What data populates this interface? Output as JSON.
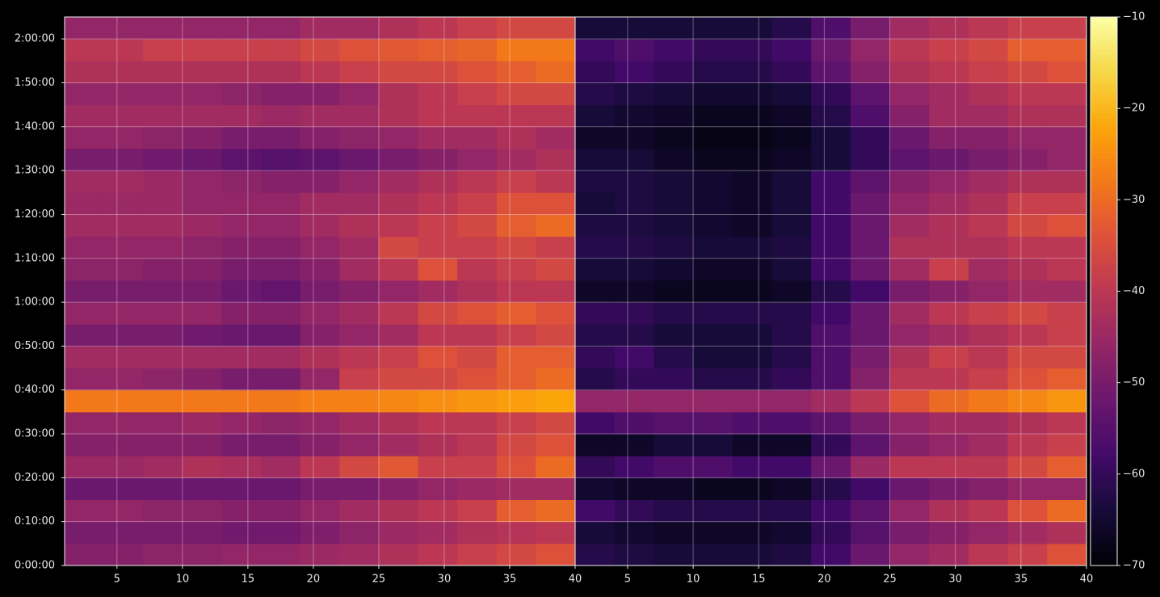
{
  "chart_data": [
    {
      "type": "heatmap",
      "x": [
        2.5,
        5.5,
        8.5,
        11.5,
        14.5,
        17.5,
        20.5,
        23.5,
        26.5,
        29.5,
        32.5,
        35.5,
        38.5
      ],
      "y": [
        150,
        450,
        750,
        1050,
        1350,
        1650,
        1950,
        2250,
        2550,
        2850,
        3150,
        3450,
        3750,
        4050,
        4350,
        4650,
        4950,
        5250,
        5550,
        5850,
        6150,
        6450,
        6750,
        7050,
        7350
      ],
      "z": [
        [
          -48,
          -48,
          -47,
          -47,
          -46,
          -46,
          -45,
          -44,
          -42,
          -40,
          -38,
          -36,
          -34
        ],
        [
          -50,
          -50,
          -50,
          -50,
          -51,
          -51,
          -49,
          -47,
          -45,
          -44,
          -42,
          -41,
          -40
        ],
        [
          -46,
          -46,
          -47,
          -47,
          -48,
          -48,
          -46,
          -44,
          -42,
          -40,
          -38,
          -32,
          -30
        ],
        [
          -52,
          -52,
          -52,
          -52,
          -52,
          -52,
          -50,
          -50,
          -48,
          -46,
          -45,
          -44,
          -44
        ],
        [
          -45,
          -45,
          -44,
          -42,
          -43,
          -44,
          -40,
          -36,
          -33,
          -38,
          -38,
          -34,
          -30
        ],
        [
          -48,
          -48,
          -48,
          -48,
          -50,
          -50,
          -48,
          -46,
          -44,
          -42,
          -40,
          -36,
          -34
        ],
        [
          -46,
          -46,
          -46,
          -45,
          -46,
          -47,
          -46,
          -44,
          -42,
          -40,
          -40,
          -38,
          -36
        ],
        [
          -28,
          -28,
          -28,
          -28,
          -28,
          -28,
          -27,
          -27,
          -26,
          -25,
          -24,
          -23,
          -22
        ],
        [
          -46,
          -46,
          -47,
          -48,
          -50,
          -50,
          -46,
          -38,
          -36,
          -36,
          -34,
          -32,
          -30
        ],
        [
          -44,
          -44,
          -44,
          -44,
          -44,
          -44,
          -42,
          -40,
          -38,
          -34,
          -36,
          -32,
          -32
        ],
        [
          -50,
          -50,
          -50,
          -51,
          -52,
          -52,
          -48,
          -46,
          -44,
          -40,
          -40,
          -38,
          -36
        ],
        [
          -46,
          -46,
          -46,
          -46,
          -48,
          -48,
          -46,
          -44,
          -40,
          -36,
          -34,
          -32,
          -34
        ],
        [
          -50,
          -50,
          -50,
          -50,
          -52,
          -53,
          -50,
          -48,
          -46,
          -44,
          -42,
          -40,
          -40
        ],
        [
          -47,
          -47,
          -48,
          -48,
          -50,
          -50,
          -48,
          -44,
          -40,
          -34,
          -40,
          -38,
          -36
        ],
        [
          -46,
          -46,
          -46,
          -47,
          -48,
          -48,
          -46,
          -44,
          -36,
          -38,
          -38,
          -36,
          -38
        ],
        [
          -44,
          -44,
          -44,
          -45,
          -46,
          -46,
          -44,
          -42,
          -40,
          -38,
          -36,
          -32,
          -30
        ],
        [
          -45,
          -45,
          -45,
          -46,
          -46,
          -46,
          -44,
          -44,
          -42,
          -40,
          -38,
          -34,
          -34
        ],
        [
          -44,
          -44,
          -45,
          -46,
          -47,
          -48,
          -48,
          -46,
          -44,
          -42,
          -40,
          -38,
          -40
        ],
        [
          -50,
          -50,
          -51,
          -52,
          -54,
          -55,
          -54,
          -52,
          -50,
          -48,
          -46,
          -44,
          -42
        ],
        [
          -46,
          -46,
          -47,
          -48,
          -50,
          -50,
          -48,
          -47,
          -46,
          -44,
          -44,
          -42,
          -44
        ],
        [
          -44,
          -44,
          -44,
          -44,
          -44,
          -45,
          -44,
          -44,
          -42,
          -40,
          -40,
          -40,
          -40
        ],
        [
          -46,
          -46,
          -46,
          -46,
          -47,
          -48,
          -48,
          -46,
          -42,
          -40,
          -38,
          -36,
          -36
        ],
        [
          -42,
          -42,
          -42,
          -42,
          -42,
          -42,
          -40,
          -38,
          -36,
          -36,
          -34,
          -32,
          -30
        ],
        [
          -40,
          -40,
          -38,
          -38,
          -38,
          -38,
          -36,
          -34,
          -33,
          -32,
          -31,
          -28,
          -28
        ],
        [
          -46,
          -46,
          -46,
          -46,
          -46,
          -46,
          -44,
          -44,
          -42,
          -40,
          -38,
          -36,
          -36
        ]
      ],
      "xlim": [
        1,
        40
      ],
      "ylim": [
        0,
        7500
      ],
      "xticks": [
        5,
        10,
        15,
        20,
        25,
        30,
        35,
        40
      ],
      "yticks": [
        {
          "value": 0,
          "label": "0:00:00"
        },
        {
          "value": 600,
          "label": "0:10:00"
        },
        {
          "value": 1200,
          "label": "0:20:00"
        },
        {
          "value": 1800,
          "label": "0:30:00"
        },
        {
          "value": 2400,
          "label": "0:40:00"
        },
        {
          "value": 3000,
          "label": "0:50:00"
        },
        {
          "value": 3600,
          "label": "1:00:00"
        },
        {
          "value": 4200,
          "label": "1:10:00"
        },
        {
          "value": 4800,
          "label": "1:20:00"
        },
        {
          "value": 5400,
          "label": "1:30:00"
        },
        {
          "value": 6000,
          "label": "1:40:00"
        },
        {
          "value": 6600,
          "label": "1:50:00"
        },
        {
          "value": 7200,
          "label": "2:00:00"
        }
      ],
      "grid": true,
      "colormap": "inferno"
    },
    {
      "type": "heatmap",
      "x": [
        2.5,
        5.5,
        8.5,
        11.5,
        14.5,
        17.5,
        20.5,
        23.5,
        26.5,
        29.5,
        32.5,
        35.5,
        38.5
      ],
      "y": [
        150,
        450,
        750,
        1050,
        1350,
        1650,
        1950,
        2250,
        2550,
        2850,
        3150,
        3450,
        3750,
        4050,
        4350,
        4650,
        4950,
        5250,
        5550,
        5850,
        6150,
        6450,
        6750,
        7050,
        7350
      ],
      "z": [
        [
          -62,
          -63,
          -64,
          -64,
          -64,
          -63,
          -58,
          -52,
          -46,
          -44,
          -40,
          -38,
          -34
        ],
        [
          -64,
          -65,
          -66,
          -66,
          -66,
          -65,
          -60,
          -55,
          -50,
          -48,
          -46,
          -44,
          -42
        ],
        [
          -58,
          -60,
          -62,
          -62,
          -62,
          -62,
          -58,
          -54,
          -46,
          -42,
          -40,
          -34,
          -30
        ],
        [
          -65,
          -66,
          -66,
          -67,
          -67,
          -66,
          -62,
          -58,
          -52,
          -50,
          -48,
          -46,
          -46
        ],
        [
          -60,
          -58,
          -56,
          -56,
          -58,
          -58,
          -52,
          -45,
          -40,
          -40,
          -40,
          -36,
          -32
        ],
        [
          -66,
          -66,
          -64,
          -64,
          -66,
          -66,
          -60,
          -54,
          -48,
          -46,
          -44,
          -40,
          -38
        ],
        [
          -58,
          -56,
          -55,
          -55,
          -56,
          -56,
          -54,
          -50,
          -46,
          -44,
          -44,
          -42,
          -40
        ],
        [
          -46,
          -46,
          -46,
          -46,
          -46,
          -46,
          -44,
          -40,
          -34,
          -30,
          -28,
          -26,
          -24
        ],
        [
          -62,
          -60,
          -60,
          -62,
          -62,
          -60,
          -56,
          -48,
          -40,
          -40,
          -38,
          -34,
          -32
        ],
        [
          -60,
          -58,
          -62,
          -64,
          -64,
          -62,
          -56,
          -50,
          -42,
          -38,
          -40,
          -36,
          -36
        ],
        [
          -62,
          -62,
          -64,
          -64,
          -64,
          -62,
          -56,
          -52,
          -46,
          -44,
          -42,
          -40,
          -38
        ],
        [
          -60,
          -60,
          -62,
          -62,
          -62,
          -62,
          -58,
          -52,
          -44,
          -40,
          -38,
          -36,
          -38
        ],
        [
          -66,
          -66,
          -67,
          -67,
          -67,
          -66,
          -62,
          -58,
          -50,
          -48,
          -46,
          -44,
          -44
        ],
        [
          -64,
          -64,
          -65,
          -66,
          -66,
          -64,
          -58,
          -52,
          -44,
          -38,
          -44,
          -42,
          -40
        ],
        [
          -62,
          -62,
          -63,
          -64,
          -64,
          -63,
          -58,
          -52,
          -42,
          -42,
          -42,
          -40,
          -40
        ],
        [
          -63,
          -63,
          -64,
          -65,
          -66,
          -64,
          -58,
          -52,
          -44,
          -42,
          -40,
          -36,
          -34
        ],
        [
          -64,
          -63,
          -64,
          -65,
          -66,
          -64,
          -58,
          -52,
          -46,
          -44,
          -42,
          -38,
          -38
        ],
        [
          -63,
          -63,
          -64,
          -65,
          -66,
          -64,
          -58,
          -54,
          -48,
          -46,
          -44,
          -42,
          -42
        ],
        [
          -64,
          -64,
          -66,
          -67,
          -67,
          -66,
          -64,
          -60,
          -54,
          -52,
          -50,
          -48,
          -46
        ],
        [
          -66,
          -66,
          -67,
          -68,
          -68,
          -67,
          -64,
          -60,
          -52,
          -48,
          -48,
          -46,
          -46
        ],
        [
          -64,
          -65,
          -66,
          -67,
          -67,
          -66,
          -62,
          -56,
          -48,
          -44,
          -44,
          -42,
          -42
        ],
        [
          -62,
          -63,
          -64,
          -65,
          -65,
          -64,
          -60,
          -54,
          -46,
          -44,
          -42,
          -40,
          -40
        ],
        [
          -60,
          -58,
          -60,
          -62,
          -62,
          -60,
          -54,
          -48,
          -42,
          -40,
          -38,
          -36,
          -34
        ],
        [
          -58,
          -56,
          -58,
          -60,
          -60,
          -58,
          -52,
          -46,
          -40,
          -38,
          -36,
          -32,
          -32
        ],
        [
          -64,
          -64,
          -64,
          -64,
          -64,
          -62,
          -56,
          -50,
          -44,
          -42,
          -40,
          -38,
          -38
        ]
      ],
      "xlim": [
        1,
        40
      ],
      "ylim": [
        0,
        7500
      ],
      "xticks": [
        5,
        10,
        15,
        20,
        25,
        30,
        35,
        40
      ],
      "grid": true,
      "colormap": "inferno",
      "zlim": [
        -70,
        -10
      ],
      "zticks": [
        {
          "value": -70,
          "label": "−70"
        },
        {
          "value": -60,
          "label": "−60"
        },
        {
          "value": -50,
          "label": "−50"
        },
        {
          "value": -40,
          "label": "−40"
        },
        {
          "value": -30,
          "label": "−30"
        },
        {
          "value": -20,
          "label": "−20"
        },
        {
          "value": -10,
          "label": "−10"
        }
      ]
    }
  ]
}
